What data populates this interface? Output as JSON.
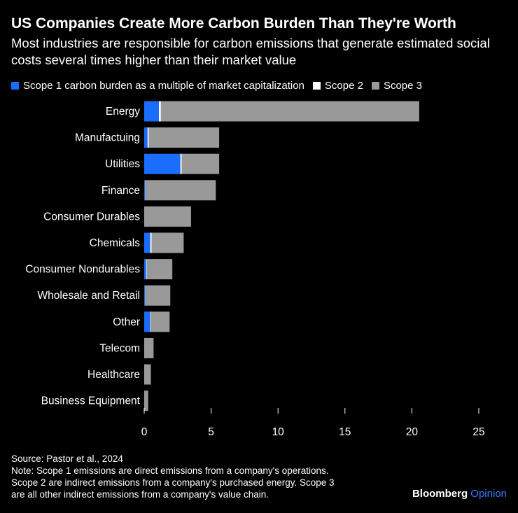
{
  "title": "US Companies Create More Carbon Burden Than They're Worth",
  "subtitle": "Most industries are responsible for carbon emissions that generate estimated social costs several times higher than their market value",
  "legend": [
    {
      "label": "Scope 1 carbon burden as a multiple of market capitalization",
      "color": "#1a6dff"
    },
    {
      "label": "Scope 2",
      "color": "#ffffff"
    },
    {
      "label": "Scope 3",
      "color": "#999999"
    }
  ],
  "colors": {
    "scope1": "#1a6dff",
    "scope2": "#ffffff",
    "scope3": "#999999",
    "background": "#000000"
  },
  "footer": {
    "source": "Source: Pastor et al., 2024",
    "note_lines": [
      "Note: Scope 1 emissions are direct emissions from a company's operations.",
      "Scope 2 are indirect emissions from a company's purchased energy. Scope 3",
      "are all other indirect emissions from a company's value chain."
    ]
  },
  "brand": {
    "name": "Bloomberg",
    "suffix": "Opinion"
  },
  "chart_data": {
    "type": "bar",
    "orientation": "horizontal",
    "stacked": true,
    "categories": [
      "Energy",
      "Manufactuing",
      "Utilities",
      "Finance",
      "Consumer Durables",
      "Chemicals",
      "Consumer Nondurables",
      "Wholesale and Retail",
      "Other",
      "Telecom",
      "Healthcare",
      "Business Equipment"
    ],
    "series": [
      {
        "name": "Scope 1 carbon burden as a multiple of market capitalization",
        "values": [
          1.1,
          0.25,
          2.7,
          0.05,
          0.0,
          0.45,
          0.15,
          0.05,
          0.45,
          0.0,
          0.0,
          0.0
        ]
      },
      {
        "name": "Scope 2",
        "values": [
          0.15,
          0.1,
          0.1,
          0.0,
          0.0,
          0.1,
          0.05,
          0.0,
          0.05,
          0.0,
          0.0,
          0.0
        ]
      },
      {
        "name": "Scope 3",
        "values": [
          19.3,
          5.25,
          2.8,
          5.3,
          3.5,
          2.4,
          1.9,
          1.9,
          1.4,
          0.7,
          0.5,
          0.3
        ]
      }
    ],
    "xlim": [
      0,
      25
    ],
    "xticks": [
      0,
      5,
      10,
      15,
      20,
      25
    ],
    "grid": false,
    "legend_position": "top"
  }
}
